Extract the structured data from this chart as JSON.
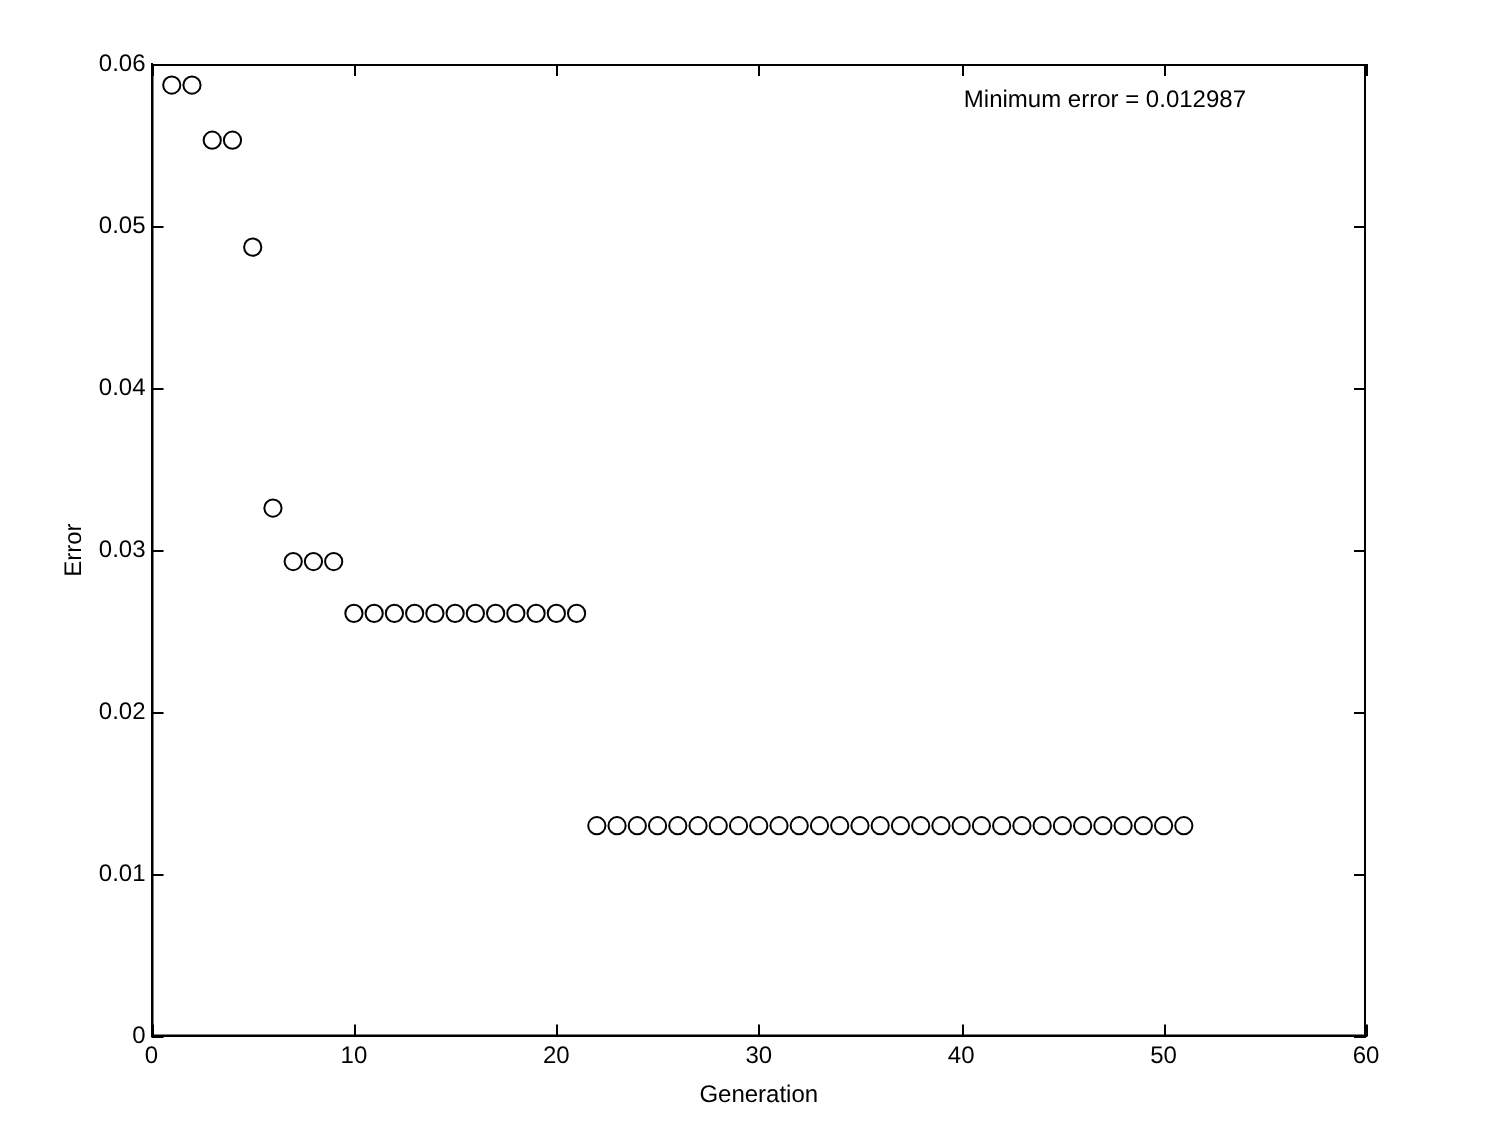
{
  "chart_data": {
    "type": "scatter",
    "xlabel": "Generation",
    "ylabel": "Error",
    "annotations": [
      "Minimum error = 0.012987"
    ],
    "x": [
      1,
      2,
      3,
      4,
      5,
      6,
      7,
      8,
      9,
      10,
      11,
      12,
      13,
      14,
      15,
      16,
      17,
      18,
      19,
      20,
      21,
      22,
      23,
      24,
      25,
      26,
      27,
      28,
      29,
      30,
      31,
      32,
      33,
      34,
      35,
      36,
      37,
      38,
      39,
      40,
      41,
      42,
      43,
      44,
      45,
      46,
      47,
      48,
      49,
      50,
      51
    ],
    "series": [
      {
        "color": "#000000",
        "values": [
          0.0587,
          0.0587,
          0.0553,
          0.0553,
          0.0487,
          0.0326,
          0.0293,
          0.0293,
          0.0293,
          0.0261,
          0.0261,
          0.0261,
          0.0261,
          0.0261,
          0.0261,
          0.0261,
          0.0261,
          0.0261,
          0.0261,
          0.0261,
          0.0261,
          0.013,
          0.013,
          0.013,
          0.013,
          0.013,
          0.013,
          0.013,
          0.013,
          0.013,
          0.013,
          0.013,
          0.013,
          0.013,
          0.013,
          0.013,
          0.013,
          0.013,
          0.013,
          0.013,
          0.013,
          0.013,
          0.013,
          0.013,
          0.013,
          0.013,
          0.013,
          0.013,
          0.013,
          0.013,
          0.013
        ]
      }
    ],
    "xlim": [
      0,
      60
    ],
    "xticks": [
      0,
      10,
      20,
      30,
      40,
      50,
      60
    ],
    "ylim": [
      0,
      0.06
    ],
    "yticks": [
      0,
      0.01,
      0.02,
      0.03,
      0.04,
      0.05,
      0.06
    ],
    "grid": false,
    "legend": false,
    "marker": "circle"
  }
}
